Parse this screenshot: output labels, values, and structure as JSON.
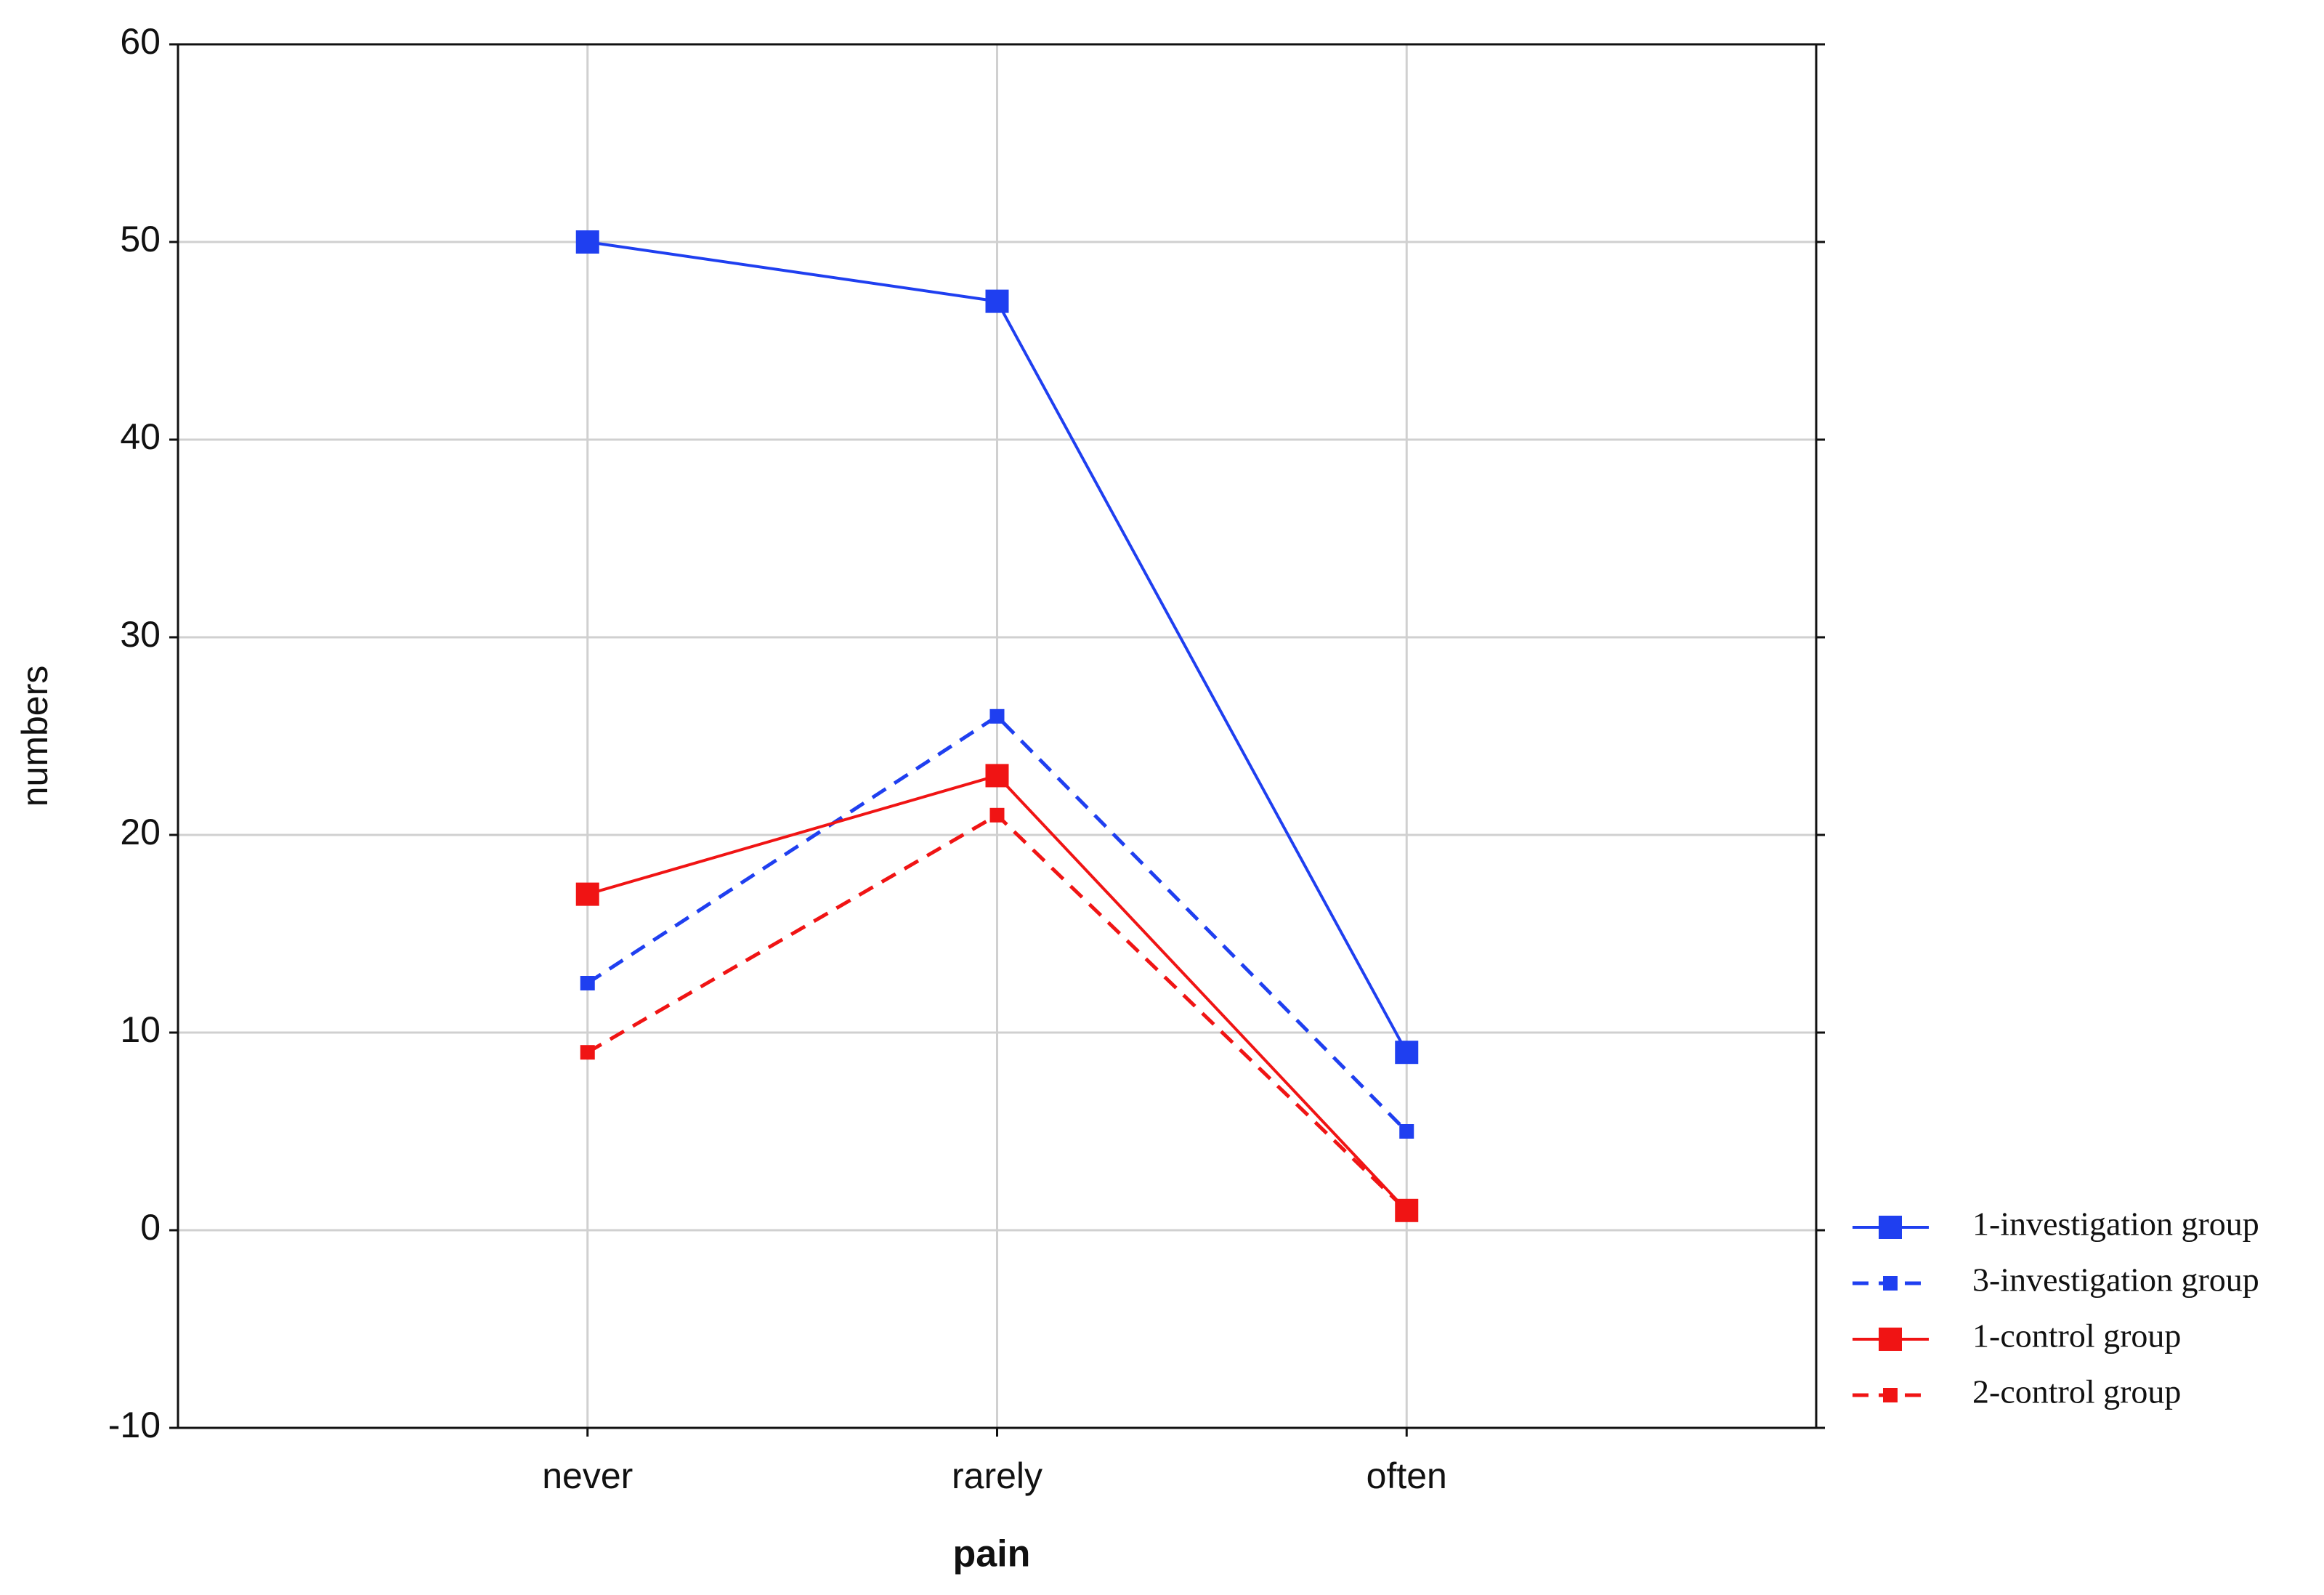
{
  "chart_data": {
    "type": "line",
    "x_label": "pain",
    "y_label": "numbers",
    "categories": [
      "never",
      "rarely",
      "often"
    ],
    "series": [
      {
        "name": "1-investigation group",
        "color": "#1f3ff0",
        "style": "solid",
        "values": [
          50,
          47,
          9
        ]
      },
      {
        "name": "3-investigation group",
        "color": "#1f3ff0",
        "style": "dashed",
        "values": [
          12.5,
          26,
          5
        ]
      },
      {
        "name": "1-control group",
        "color": "#f01414",
        "style": "solid",
        "values": [
          17,
          23,
          1
        ]
      },
      {
        "name": "2-control group",
        "color": "#f01414",
        "style": "dashed",
        "values": [
          9,
          21,
          1
        ]
      }
    ],
    "ylim": [
      -10,
      60
    ],
    "yticks": [
      -10,
      0,
      10,
      20,
      30,
      40,
      50,
      60
    ],
    "grid": true,
    "legend": "right"
  }
}
